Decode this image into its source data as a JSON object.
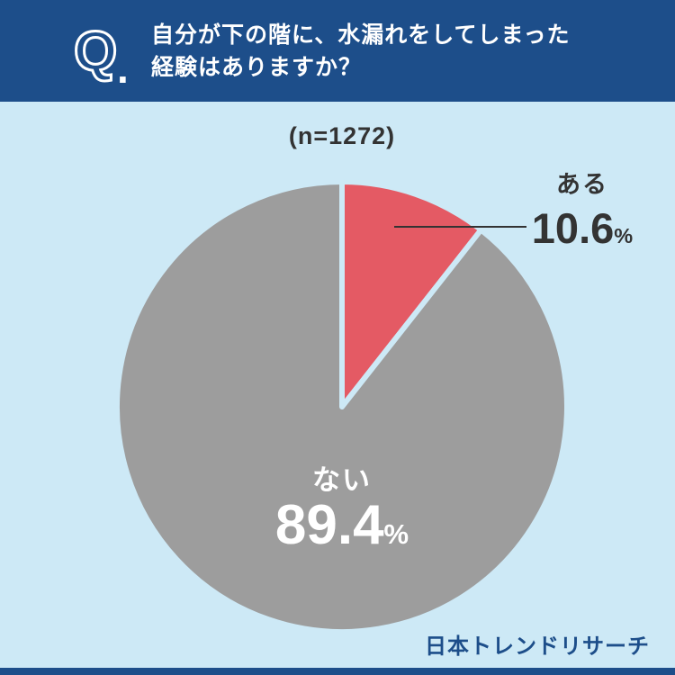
{
  "header": {
    "q_letter": "Q",
    "q_period": ".",
    "title_line1": "自分が下の階に、水漏れをしてしまった",
    "title_line2": "経験はありますか？"
  },
  "chart_data": {
    "type": "pie",
    "title": "自分が下の階に、水漏れをしてしまった経験はありますか？",
    "sample_size_label": "(n=1272)",
    "unit": "%",
    "start_angle_deg": -90,
    "direction": "clockwise",
    "legend_position": "none",
    "slices": [
      {
        "label": "ある",
        "value": 10.6,
        "color": "#e45a64"
      },
      {
        "label": "ない",
        "value": 89.4,
        "color": "#9d9d9d"
      }
    ]
  },
  "footer": {
    "brand": "日本トレンドリサーチ"
  },
  "colors": {
    "header_bg": "#1d4e8a",
    "page_bg": "#cde9f6",
    "text_dark": "#333333",
    "text_light": "#ffffff",
    "slice_gap": "#cde9f6"
  }
}
